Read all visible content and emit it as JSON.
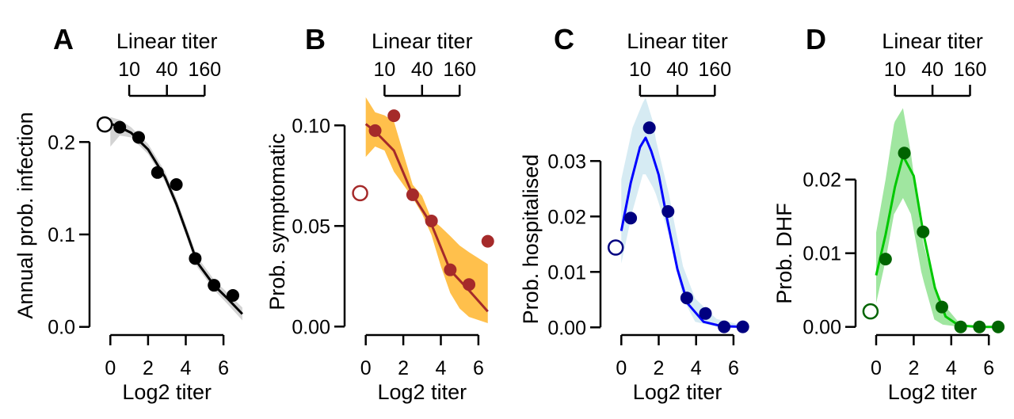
{
  "chart_data": [
    {
      "type": "scatter",
      "panel_label": "A",
      "xlabel": "Log2 titer",
      "ylabel": "Annual prob. infection",
      "xticks": [
        0,
        2,
        4,
        6
      ],
      "xtick_labels": [
        "0",
        "2",
        "4",
        "6"
      ],
      "yticks": [
        0.0,
        0.1,
        0.2
      ],
      "ytick_labels": [
        "0.0",
        "0.1",
        "0.2"
      ],
      "top_axis": {
        "title": "Linear titer",
        "ticks": [
          1,
          3,
          5
        ],
        "tick_labels": [
          "10",
          "40",
          "160"
        ]
      },
      "colors": {
        "point": "#000000",
        "line": "#000000",
        "band": "#d3d3d3"
      },
      "open_point": {
        "x": -0.3,
        "y": 0.219
      },
      "points": {
        "x": [
          0.5,
          1.5,
          2.5,
          3.5,
          4.5,
          5.5,
          6.5
        ],
        "y": [
          0.216,
          0.205,
          0.167,
          0.154,
          0.074,
          0.045,
          0.034
        ]
      },
      "curve": {
        "x": [
          0,
          0.5,
          1.1,
          2.0,
          2.9,
          3.5,
          4.1,
          4.6,
          5.5,
          6.2,
          7.0
        ],
        "y": [
          0.22,
          0.216,
          0.21,
          0.192,
          0.162,
          0.133,
          0.099,
          0.07,
          0.045,
          0.031,
          0.014
        ]
      },
      "band": {
        "x": [
          0,
          0.5,
          1.1,
          2.0,
          2.9,
          3.5,
          4.1,
          4.6,
          5.5,
          6.2,
          7.0
        ],
        "lower": [
          0.195,
          0.207,
          0.205,
          0.187,
          0.157,
          0.128,
          0.094,
          0.065,
          0.04,
          0.025,
          0.007
        ],
        "upper": [
          0.227,
          0.224,
          0.216,
          0.198,
          0.168,
          0.139,
          0.105,
          0.076,
          0.051,
          0.037,
          0.021
        ]
      }
    },
    {
      "type": "scatter",
      "panel_label": "B",
      "xlabel": "Log2 titer",
      "ylabel": "Prob. symptomatic",
      "xticks": [
        0,
        2,
        4,
        6
      ],
      "xtick_labels": [
        "0",
        "2",
        "4",
        "6"
      ],
      "yticks": [
        0.0,
        0.05,
        0.1
      ],
      "ytick_labels": [
        "0.00",
        "0.05",
        "0.10"
      ],
      "top_axis": {
        "title": "Linear titer",
        "ticks": [
          1,
          3,
          5
        ],
        "tick_labels": [
          "10",
          "40",
          "160"
        ]
      },
      "colors": {
        "point": "#a52a2a",
        "line": "#a52a2a",
        "band": "#ffc04c"
      },
      "open_point": {
        "x": -0.3,
        "y": 0.0663
      },
      "points": {
        "x": [
          0.5,
          1.5,
          2.5,
          3.5,
          4.5,
          5.5,
          6.5
        ],
        "y": [
          0.0974,
          0.1048,
          0.0655,
          0.0525,
          0.0282,
          0.0209,
          0.0424
        ]
      },
      "curve": {
        "x": [
          0,
          0.5,
          1.5,
          2.5,
          3.5,
          4.5,
          5.5,
          6.5
        ],
        "y": [
          0.1007,
          0.097,
          0.0875,
          0.0655,
          0.0508,
          0.028,
          0.018,
          0.0075
        ]
      },
      "band": {
        "x": [
          0,
          0.5,
          1.0,
          1.5,
          2.5,
          3.0,
          3.5,
          4.0,
          4.5,
          5.0,
          5.5,
          6.5
        ],
        "lower": [
          0.0843,
          0.0895,
          0.0875,
          0.077,
          0.064,
          0.056,
          0.0455,
          0.03,
          0.0167,
          0.009,
          0.0048,
          0.0017
        ],
        "upper": [
          0.114,
          0.1065,
          0.105,
          0.102,
          0.0705,
          0.065,
          0.0534,
          0.0495,
          0.045,
          0.0403,
          0.037,
          0.031
        ]
      }
    },
    {
      "type": "scatter",
      "panel_label": "C",
      "xlabel": "Log2 titer",
      "ylabel": "Prob. hospitalised",
      "xticks": [
        0,
        2,
        4,
        6
      ],
      "xtick_labels": [
        "0",
        "2",
        "4",
        "6"
      ],
      "yticks": [
        0.0,
        0.01,
        0.02,
        0.03
      ],
      "ytick_labels": [
        "0.00",
        "0.01",
        "0.02",
        "0.03"
      ],
      "top_axis": {
        "title": "Linear titer",
        "ticks": [
          1,
          3,
          5
        ],
        "tick_labels": [
          "10",
          "40",
          "160"
        ]
      },
      "colors": {
        "point": "#000080",
        "line": "#0000ff",
        "band": "#d6ebf3"
      },
      "open_point": {
        "x": -0.3,
        "y": 0.0144
      },
      "points": {
        "x": [
          0.5,
          1.5,
          2.5,
          3.5,
          4.5,
          5.5,
          6.5
        ],
        "y": [
          0.0197,
          0.036,
          0.0209,
          0.0053,
          0.0025,
          0.0001,
          0.0001
        ]
      },
      "curve": {
        "x": [
          0,
          0.5,
          1.0,
          1.3,
          1.6,
          2.0,
          2.45,
          3.0,
          3.55,
          4.4,
          5.4,
          6.6
        ],
        "y": [
          0.0174,
          0.026,
          0.0325,
          0.0342,
          0.0318,
          0.0275,
          0.0195,
          0.0105,
          0.0043,
          0.001,
          0.0002,
          0.0001
        ]
      },
      "band": {
        "x": [
          0,
          0.6,
          1.15,
          1.3,
          1.7,
          1.85,
          2.55,
          2.85,
          3.3,
          3.95,
          5.1,
          6.6
        ],
        "lower": [
          0.0115,
          0.021,
          0.0276,
          0.0276,
          0.0252,
          0.024,
          0.0167,
          0.012,
          0.0052,
          0.001,
          0.0001,
          0.0
        ],
        "upper": [
          0.0267,
          0.036,
          0.0405,
          0.0414,
          0.037,
          0.0338,
          0.024,
          0.0186,
          0.011,
          0.0052,
          0.0015,
          0.0003
        ]
      }
    },
    {
      "type": "scatter",
      "panel_label": "D",
      "xlabel": "Log2 titer",
      "ylabel": "Prob. DHF",
      "xticks": [
        0,
        2,
        4,
        6
      ],
      "xtick_labels": [
        "0",
        "2",
        "4",
        "6"
      ],
      "yticks": [
        0.0,
        0.01,
        0.02
      ],
      "ytick_labels": [
        "0.00",
        "0.01",
        "0.02"
      ],
      "top_axis": {
        "title": "Linear titer",
        "ticks": [
          1,
          3,
          5
        ],
        "tick_labels": [
          "10",
          "40",
          "160"
        ]
      },
      "colors": {
        "point": "#006400",
        "line": "#00c800",
        "band": "#a0e6a0"
      },
      "open_point": {
        "x": -0.3,
        "y": 0.0021
      },
      "points": {
        "x": [
          0.5,
          1.5,
          2.5,
          3.5,
          4.5,
          5.5,
          6.5
        ],
        "y": [
          0.0092,
          0.0236,
          0.0129,
          0.0027,
          0.0,
          0.0,
          0.0
        ]
      },
      "curve": {
        "x": [
          0,
          0.5,
          1.0,
          1.43,
          2.0,
          2.5,
          3.13,
          3.7,
          4.4,
          5.5,
          6.6
        ],
        "y": [
          0.007,
          0.0125,
          0.019,
          0.0232,
          0.0205,
          0.0129,
          0.0053,
          0.0014,
          0.0002,
          0.0,
          0.0
        ]
      },
      "band": {
        "x": [
          0,
          0.5,
          0.95,
          1.0,
          1.43,
          1.85,
          2.4,
          2.55,
          3.1,
          3.55,
          4.5,
          6.6
        ],
        "lower": [
          0.0032,
          0.009,
          0.0153,
          0.0155,
          0.0175,
          0.0153,
          0.0075,
          0.006,
          0.001,
          0.0003,
          0.0,
          0.0
        ],
        "upper": [
          0.0128,
          0.02,
          0.0275,
          0.0279,
          0.0297,
          0.0236,
          0.013,
          0.011,
          0.0055,
          0.0032,
          0.0003,
          0.0
        ]
      }
    }
  ]
}
